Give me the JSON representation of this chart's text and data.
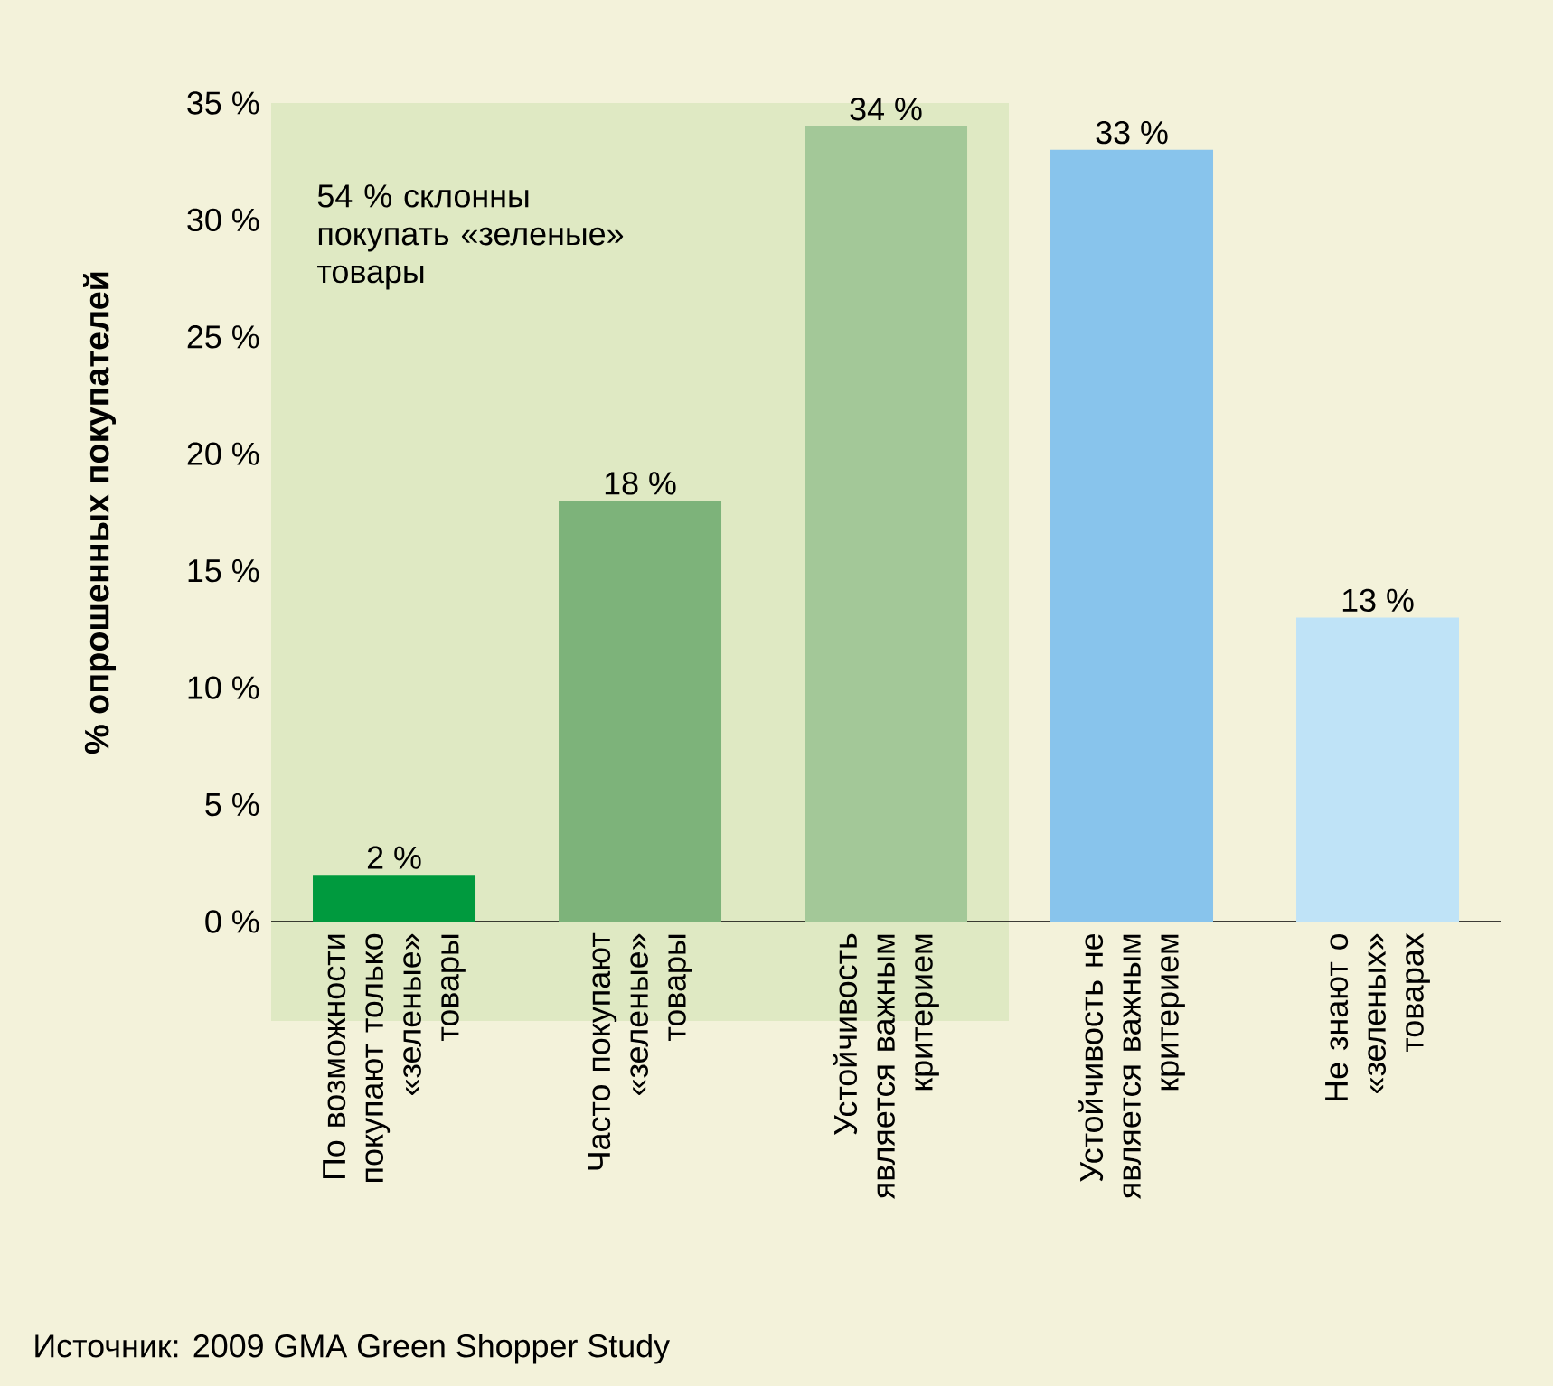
{
  "chart_data": {
    "type": "bar",
    "categories": [
      "По возможности покупают только «зеленые» товары",
      "Часто покупают «зеленые» товары",
      "Устойчивость является важным критерием",
      "Устойчивость не является важным критерием",
      "Не знают о «зеленых» товарах"
    ],
    "values": [
      2,
      18,
      34,
      33,
      13
    ],
    "colors": [
      "#009a3e",
      "#7db37a",
      "#a3c898",
      "#88c4ec",
      "#bfe3f7"
    ],
    "value_labels": [
      "2 %",
      "18 %",
      "34 %",
      "33 %",
      "13 %"
    ],
    "ylabel": "% опрошенных покупателей",
    "ylim": [
      0,
      35
    ],
    "yticks": [
      {
        "value": 0,
        "label": "0 %"
      },
      {
        "value": 5,
        "label": "5 %"
      },
      {
        "value": 10,
        "label": "10 %"
      },
      {
        "value": 15,
        "label": "15 %"
      },
      {
        "value": 20,
        "label": "20 %"
      },
      {
        "value": 25,
        "label": "25 %"
      },
      {
        "value": 30,
        "label": "30 %"
      },
      {
        "value": 35,
        "label": "35 %"
      }
    ],
    "bands": [
      {
        "axis": "x",
        "from": "По возможности покупают только «зеленые» товары",
        "to": "Устойчивость является важным критерием",
        "label": "54 % склонны покупать «зеленые» товары",
        "color": "#dfe9c3"
      }
    ],
    "annotations": [
      "Источник: 2009 GMA Green Shopper Study"
    ],
    "grid": false
  }
}
